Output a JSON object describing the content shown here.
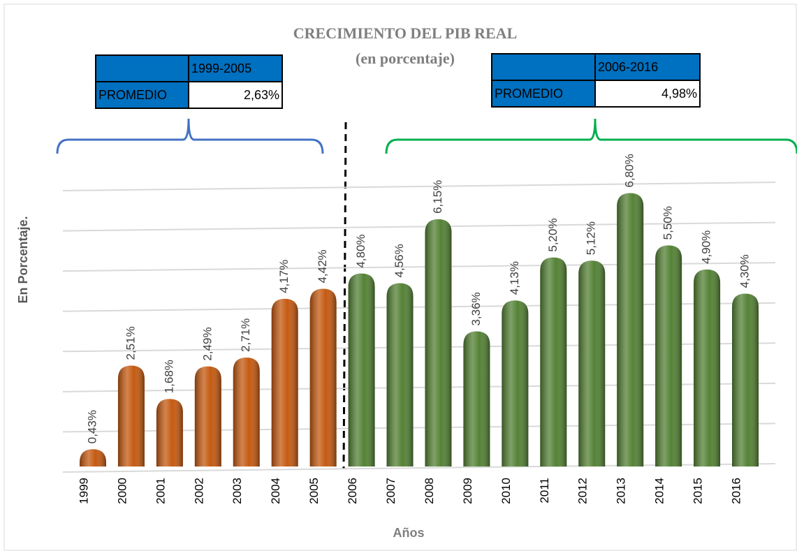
{
  "chart_data": {
    "type": "bar",
    "title": "CRECIMIENTO DEL PIB REAL",
    "subtitle": "(en porcentaje)",
    "y_label": "En Porcentaje.",
    "x_label": "Años",
    "categories": [
      "1999",
      "2000",
      "2001",
      "2002",
      "2003",
      "2004",
      "2005",
      "2006",
      "2007",
      "2008",
      "2009",
      "2010",
      "2011",
      "2012",
      "2013",
      "2014",
      "2015",
      "2016"
    ],
    "values": [
      0.43,
      2.51,
      1.68,
      2.49,
      2.71,
      4.17,
      4.42,
      4.8,
      4.56,
      6.15,
      3.36,
      4.13,
      5.2,
      5.12,
      6.8,
      5.5,
      4.9,
      4.3
    ],
    "value_labels": [
      "0,43%",
      "2,51%",
      "1,68%",
      "2,49%",
      "2,71%",
      "4,17%",
      "4,42%",
      "4,80%",
      "4,56%",
      "6,15%",
      "3,36%",
      "4,13%",
      "5,20%",
      "5,12%",
      "6,80%",
      "5,50%",
      "4,90%",
      "4,30%"
    ],
    "colors": [
      "#c55a11",
      "#c55a11",
      "#c55a11",
      "#c55a11",
      "#c55a11",
      "#c55a11",
      "#c55a11",
      "#548235",
      "#548235",
      "#548235",
      "#548235",
      "#548235",
      "#548235",
      "#548235",
      "#548235",
      "#548235",
      "#548235",
      "#548235"
    ],
    "ylim": [
      0,
      7
    ],
    "yticks": [
      0,
      1,
      2,
      3,
      4,
      5,
      6,
      7
    ],
    "grid": true,
    "annotations": [
      {
        "period": "1999-2005",
        "label": "PROMEDIO",
        "value": "2,63%",
        "color": "#4472c4"
      },
      {
        "period": "2006-2016",
        "label": "PROMEDIO",
        "value": "4,98%",
        "color": "#00b050"
      }
    ]
  }
}
